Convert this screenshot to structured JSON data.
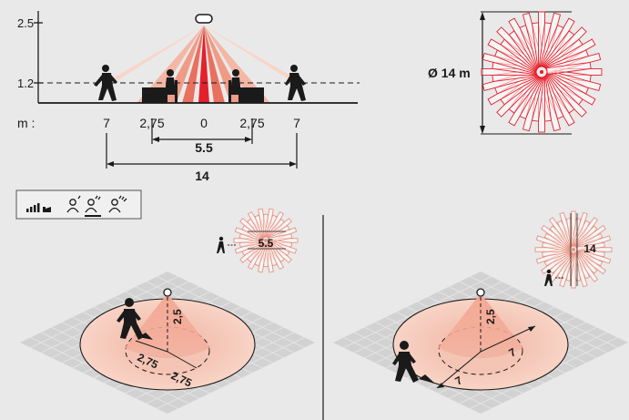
{
  "side_view": {
    "y_ticks": [
      "2.5",
      "1.2"
    ],
    "x_unit": "m :",
    "x_ticks": [
      "7",
      "2,75",
      "0",
      "2,75",
      "7"
    ],
    "dim_inner": "5.5",
    "dim_outer": "14"
  },
  "top_view": {
    "diameter_label": "Ø 14 m"
  },
  "mode_selector": {
    "items": [
      "sensitivity-low",
      "sensitivity-medium",
      "sensitivity-high"
    ],
    "selected_index": 1
  },
  "tangential": {
    "diameter_label": "5.5",
    "height_label": "2,5",
    "radius_labels": [
      "2,75",
      "2,75"
    ]
  },
  "radial": {
    "diameter_label": "14",
    "height_label": "2,5",
    "radius_labels": [
      "7",
      "7"
    ]
  },
  "colors": {
    "accent_red": "#e4202c",
    "light_red": "#f6b8a8",
    "floor": "#f4cbbb",
    "grid": "#c9c9c9",
    "background": "#e9e9e9"
  }
}
